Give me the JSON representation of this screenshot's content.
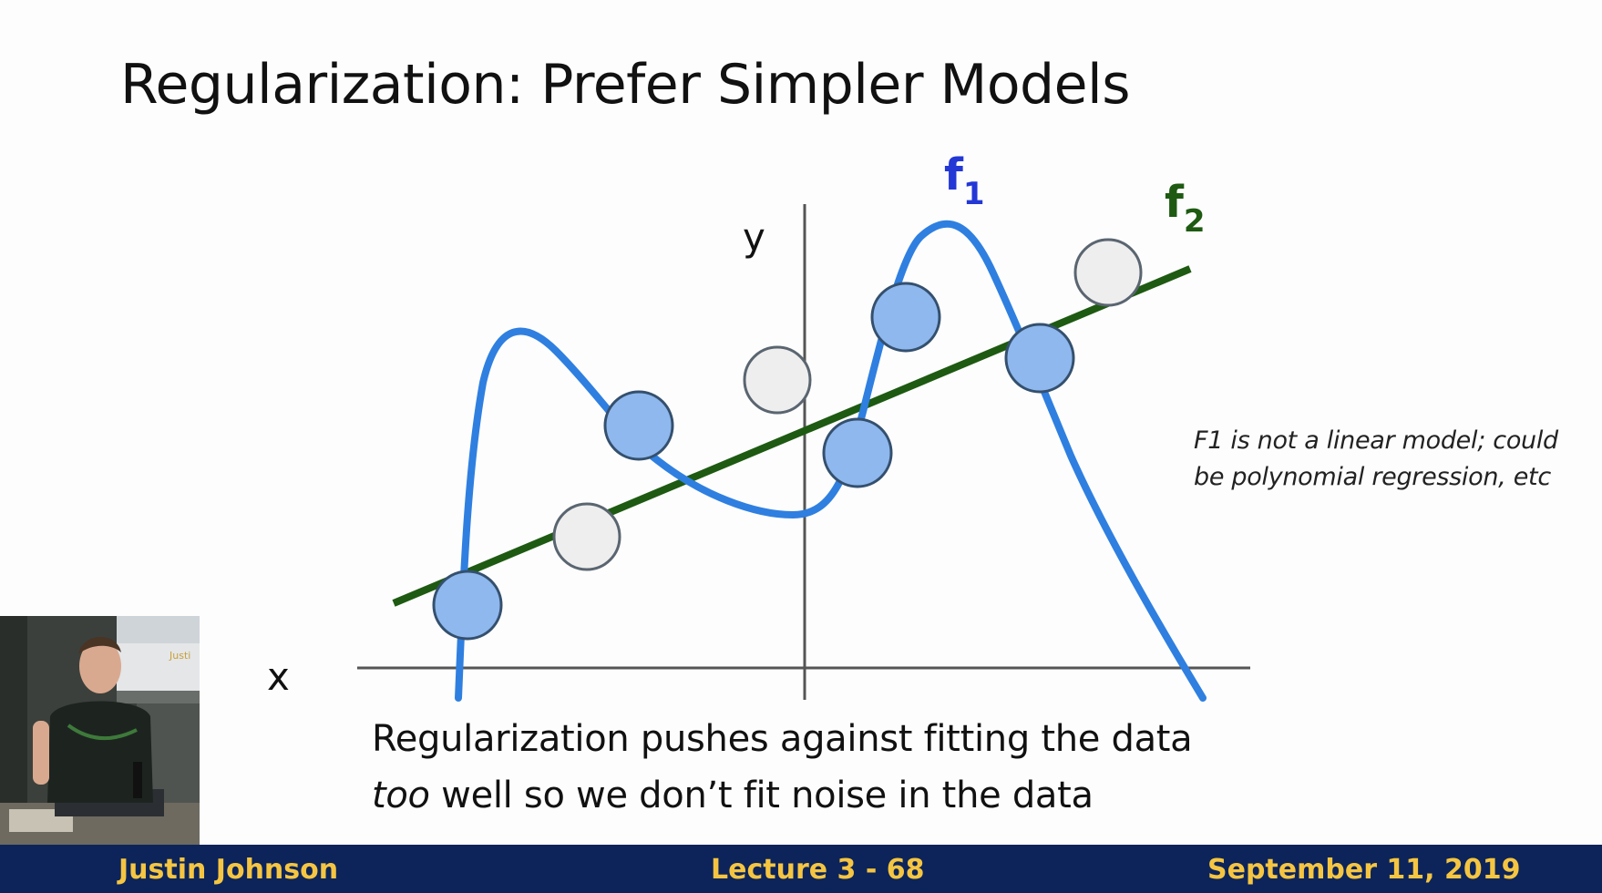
{
  "slide": {
    "title": "Regularization: Prefer Simpler Models",
    "side_note": "F1 is not a linear model; could be polynomial regression, etc",
    "caption_line1": "Regularization pushes against fitting the data",
    "caption_em": "too",
    "caption_line2_rest": " well so we don’t fit noise in the data"
  },
  "diagram": {
    "x_axis_label": "x",
    "y_axis_label": "y",
    "f1_label": "f",
    "f1_subscript": "1",
    "f2_label": "f",
    "f2_subscript": "2",
    "colors": {
      "f1": "#2f7fe0",
      "f2": "#1e5a12",
      "f1_label": "#2438d6",
      "f2_label": "#1e5a12",
      "blue_point": "#8eb8ee",
      "gray_point": "#eeeeee"
    }
  },
  "video": {
    "name_tag": "Justi"
  },
  "footer": {
    "author": "Justin Johnson",
    "lecture": "Lecture 3 - 68",
    "date": "September 11, 2019"
  }
}
